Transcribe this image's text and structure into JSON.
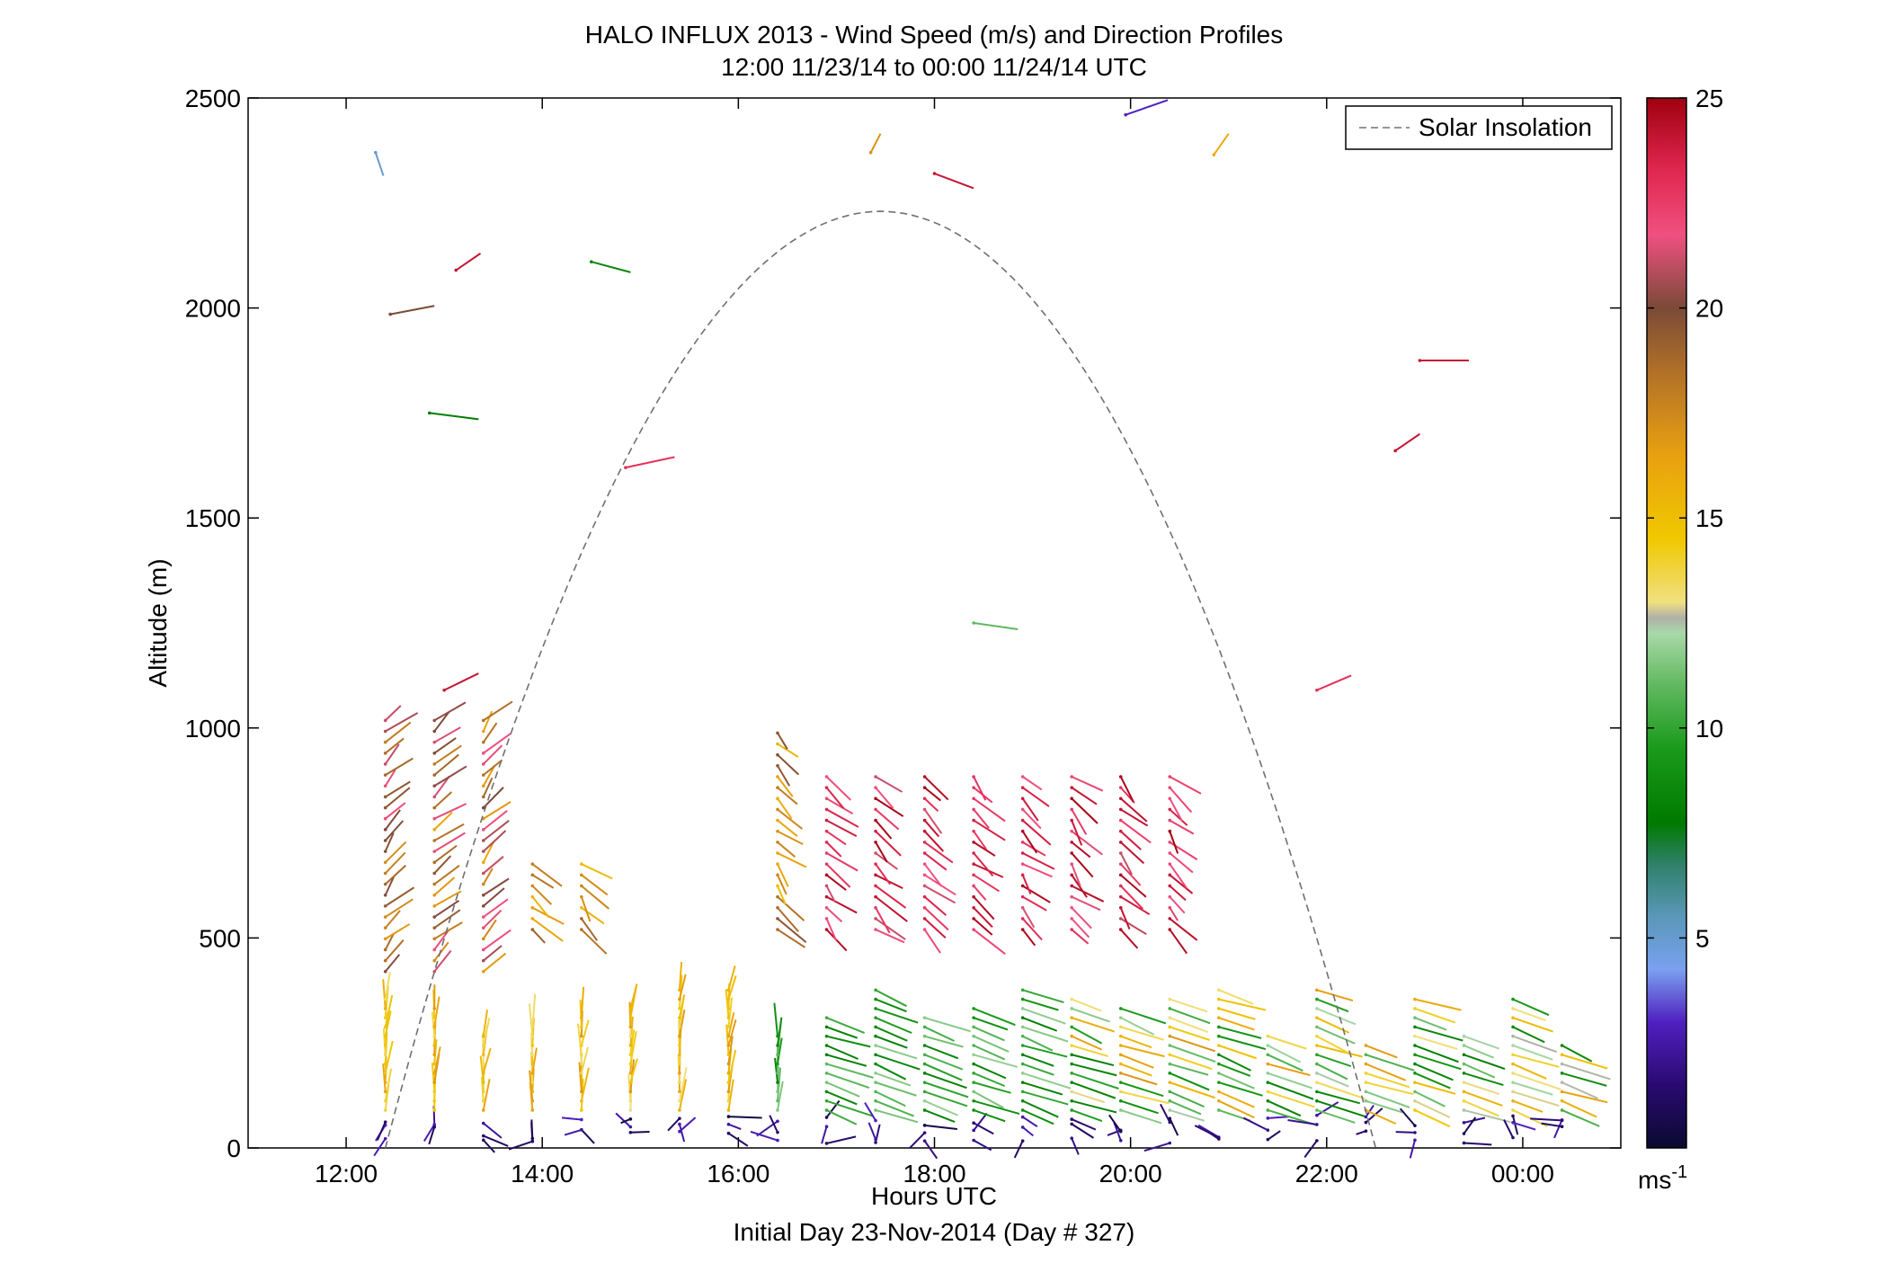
{
  "chart_data": {
    "type": "scatter",
    "title": "HALO INFLUX 2013 - Wind Speed (m/s) and Direction Profiles",
    "subtitle": "12:00 11/23/14 to 00:00 11/24/14  UTC",
    "xlabel": "Hours UTC",
    "xlabel2": "Initial Day 23-Nov-2014 (Day # 327)",
    "ylabel": "Altitude (m)",
    "xlim": [
      11.0,
      25.0
    ],
    "ylim": [
      0,
      2500
    ],
    "x_ticks": [
      12,
      14,
      16,
      18,
      20,
      22,
      24
    ],
    "x_tick_labels": [
      "12:00",
      "14:00",
      "16:00",
      "18:00",
      "20:00",
      "22:00",
      "00:00"
    ],
    "y_ticks": [
      0,
      500,
      1000,
      1500,
      2000,
      2500
    ],
    "y_tick_labels": [
      "0",
      "500",
      "1000",
      "1500",
      "2000",
      "2500"
    ],
    "colorbar": {
      "range": [
        0,
        25
      ],
      "ticks": [
        5,
        10,
        15,
        20,
        25
      ],
      "tick_labels": [
        "5",
        "10",
        "15",
        "20",
        "25"
      ],
      "units": "ms",
      "units_sup": "-1"
    },
    "legend": {
      "position": "top-right",
      "entries": [
        {
          "label": "Solar Insolation",
          "style": "dashed",
          "color": "#707070"
        }
      ]
    },
    "solar_insolation": {
      "rise_hour": 12.4,
      "set_hour": 22.5,
      "peak_hour": 17.45,
      "peak_altitude": 2230
    },
    "profile_times": [
      12.4,
      12.9,
      13.4,
      13.9,
      14.4,
      14.9,
      15.4,
      15.9,
      16.4,
      16.9,
      17.4,
      17.9,
      18.4,
      18.9,
      19.4,
      19.9,
      20.4,
      20.9,
      21.4,
      21.9,
      22.4,
      22.9,
      23.4,
      23.9,
      24.4
    ],
    "segments": [
      [
        12.3,
        2370,
        12.38,
        2315,
        5
      ],
      [
        12.45,
        1985,
        12.9,
        2005,
        20
      ],
      [
        13.12,
        2090,
        13.37,
        2130,
        24
      ],
      [
        12.85,
        1750,
        13.35,
        1735,
        8
      ],
      [
        14.5,
        2110,
        14.9,
        2085,
        8.5
      ],
      [
        14.85,
        1620,
        15.35,
        1645,
        23
      ],
      [
        17.35,
        2370,
        17.45,
        2415,
        17
      ],
      [
        18.0,
        2320,
        18.4,
        2285,
        24
      ],
      [
        19.95,
        2460,
        20.38,
        2495,
        3
      ],
      [
        20.85,
        2365,
        21.0,
        2415,
        16
      ],
      [
        22.95,
        1875,
        23.45,
        1875,
        24
      ],
      [
        22.7,
        1660,
        22.95,
        1700,
        24
      ],
      [
        18.4,
        1250,
        18.85,
        1235,
        11
      ],
      [
        21.9,
        1090,
        22.25,
        1125,
        23
      ],
      [
        13.0,
        1090,
        13.35,
        1130,
        24
      ]
    ],
    "series": [
      {
        "name": "",
        "x": [],
        "y": []
      }
    ]
  }
}
